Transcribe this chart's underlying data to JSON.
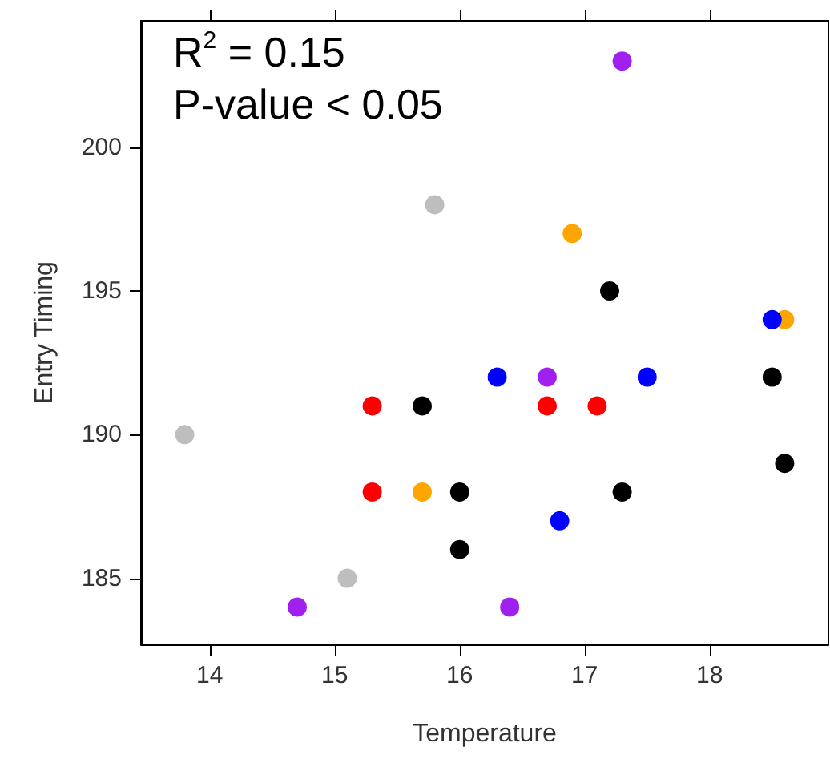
{
  "chart_data": {
    "type": "scatter",
    "xlabel": "Temperature",
    "ylabel": "Entry Timing",
    "annotations": [
      "R$^{2}$ = 0.15",
      "P-value < 0.05"
    ],
    "xlim": [
      13.45,
      18.95
    ],
    "xticks": [
      14,
      15,
      16,
      17,
      18
    ],
    "ylim": [
      182.7,
      204.4
    ],
    "yticks": [
      185,
      190,
      195,
      200
    ],
    "grid": false,
    "marker": "circle",
    "series": [
      {
        "color": "#bebebe",
        "x": [
          13.8,
          15.8,
          15.1
        ],
        "values": [
          190,
          198,
          185
        ]
      },
      {
        "color": "#a020f0",
        "x": [
          14.7,
          17.3,
          16.7,
          16.4
        ],
        "values": [
          184,
          203,
          192,
          184
        ]
      },
      {
        "color": "#ff0000",
        "x": [
          15.3,
          15.3,
          16.7,
          17.1
        ],
        "values": [
          191,
          188,
          191,
          191
        ]
      },
      {
        "color": "#000000",
        "x": [
          15.7,
          16.0,
          16.0,
          17.2,
          18.5,
          18.6,
          17.3
        ],
        "values": [
          191,
          188,
          186,
          195,
          192,
          189,
          188
        ]
      },
      {
        "color": "#ffa500",
        "x": [
          15.7,
          16.9,
          18.6
        ],
        "values": [
          188,
          197,
          194
        ]
      },
      {
        "color": "#0000ff",
        "x": [
          18.5,
          16.3,
          17.5,
          16.8
        ],
        "values": [
          194,
          192,
          192,
          187
        ]
      }
    ]
  }
}
